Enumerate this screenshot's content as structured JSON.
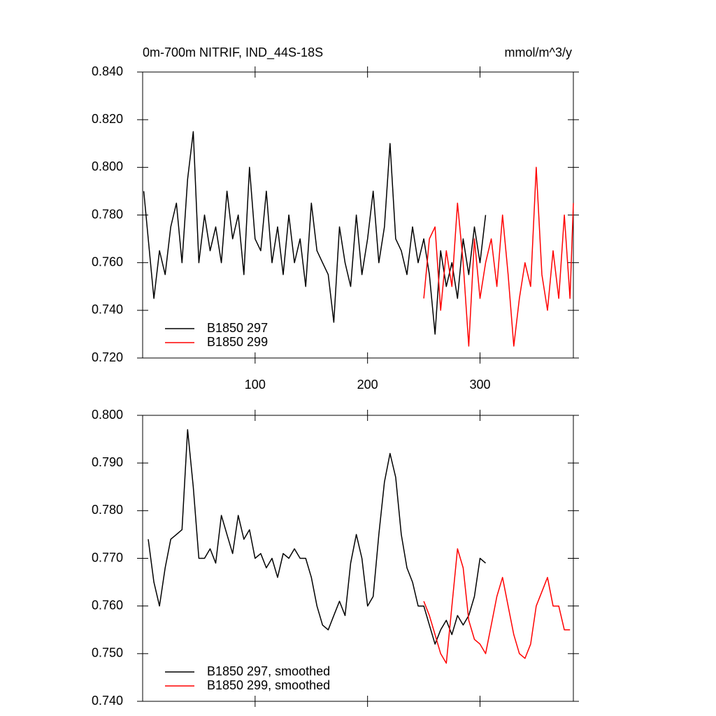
{
  "chart_data": [
    {
      "type": "line",
      "title": "0m-700m NITRIF, IND_44S-18S",
      "units": "mmol/m^3/y",
      "xlim": [
        0,
        383
      ],
      "xticks": [
        100,
        200,
        300
      ],
      "ylim": [
        0.72,
        0.84
      ],
      "yticks": [
        {
          "value": 0.72,
          "label": "0.720"
        },
        {
          "value": 0.74,
          "label": "0.740"
        },
        {
          "value": 0.76,
          "label": "0.760"
        },
        {
          "value": 0.78,
          "label": "0.780"
        },
        {
          "value": 0.8,
          "label": "0.800"
        },
        {
          "value": 0.82,
          "label": "0.820"
        },
        {
          "value": 0.84,
          "label": "0.840"
        }
      ],
      "show_xtick_labels": true,
      "series": [
        {
          "name": "B1850 297",
          "color": "#000000",
          "x": [
            1,
            5,
            10,
            15,
            20,
            25,
            30,
            35,
            40,
            45,
            50,
            55,
            60,
            65,
            70,
            75,
            80,
            85,
            90,
            95,
            100,
            105,
            110,
            115,
            120,
            125,
            130,
            135,
            140,
            145,
            150,
            155,
            160,
            165,
            170,
            175,
            180,
            185,
            190,
            195,
            200,
            205,
            210,
            215,
            220,
            225,
            230,
            235,
            240,
            245,
            250,
            255,
            260,
            265,
            270,
            275,
            280,
            285,
            290,
            295,
            300,
            305
          ],
          "values": [
            0.79,
            0.77,
            0.745,
            0.765,
            0.755,
            0.775,
            0.785,
            0.76,
            0.795,
            0.815,
            0.76,
            0.78,
            0.765,
            0.775,
            0.76,
            0.79,
            0.77,
            0.78,
            0.755,
            0.8,
            0.77,
            0.765,
            0.79,
            0.76,
            0.775,
            0.755,
            0.78,
            0.76,
            0.77,
            0.75,
            0.785,
            0.765,
            0.76,
            0.755,
            0.735,
            0.775,
            0.76,
            0.75,
            0.78,
            0.755,
            0.77,
            0.79,
            0.76,
            0.775,
            0.81,
            0.77,
            0.765,
            0.755,
            0.775,
            0.76,
            0.77,
            0.755,
            0.73,
            0.765,
            0.75,
            0.76,
            0.745,
            0.77,
            0.755,
            0.775,
            0.76,
            0.78
          ]
        },
        {
          "name": "B1850 299",
          "color": "#ff0000",
          "x": [
            250,
            255,
            260,
            265,
            270,
            275,
            280,
            285,
            290,
            295,
            300,
            305,
            310,
            315,
            320,
            325,
            330,
            335,
            340,
            345,
            350,
            355,
            360,
            365,
            370,
            375,
            380,
            383
          ],
          "values": [
            0.745,
            0.77,
            0.775,
            0.74,
            0.765,
            0.75,
            0.785,
            0.76,
            0.725,
            0.77,
            0.745,
            0.76,
            0.77,
            0.75,
            0.78,
            0.755,
            0.725,
            0.745,
            0.76,
            0.75,
            0.8,
            0.755,
            0.74,
            0.765,
            0.745,
            0.78,
            0.745,
            0.785
          ]
        }
      ]
    },
    {
      "type": "line",
      "xlim": [
        0,
        383
      ],
      "xticks": [
        100,
        200,
        300
      ],
      "ylim": [
        0.74,
        0.8
      ],
      "yticks": [
        {
          "value": 0.74,
          "label": "0.740"
        },
        {
          "value": 0.75,
          "label": "0.750"
        },
        {
          "value": 0.76,
          "label": "0.760"
        },
        {
          "value": 0.77,
          "label": "0.770"
        },
        {
          "value": 0.78,
          "label": "0.780"
        },
        {
          "value": 0.79,
          "label": "0.790"
        },
        {
          "value": 0.8,
          "label": "0.800"
        }
      ],
      "show_xtick_labels": false,
      "series": [
        {
          "name": "B1850 297, smoothed",
          "color": "#000000",
          "x": [
            5,
            10,
            15,
            20,
            25,
            30,
            35,
            40,
            45,
            50,
            55,
            60,
            65,
            70,
            75,
            80,
            85,
            90,
            95,
            100,
            105,
            110,
            115,
            120,
            125,
            130,
            135,
            140,
            145,
            150,
            155,
            160,
            165,
            170,
            175,
            180,
            185,
            190,
            195,
            200,
            205,
            210,
            215,
            220,
            225,
            230,
            235,
            240,
            245,
            250,
            255,
            260,
            265,
            270,
            275,
            280,
            285,
            290,
            295,
            300,
            305
          ],
          "values": [
            0.774,
            0.765,
            0.76,
            0.768,
            0.774,
            0.775,
            0.776,
            0.797,
            0.785,
            0.77,
            0.77,
            0.772,
            0.769,
            0.779,
            0.775,
            0.771,
            0.779,
            0.774,
            0.776,
            0.77,
            0.771,
            0.768,
            0.77,
            0.766,
            0.771,
            0.77,
            0.772,
            0.77,
            0.77,
            0.766,
            0.76,
            0.756,
            0.755,
            0.758,
            0.761,
            0.758,
            0.769,
            0.775,
            0.77,
            0.76,
            0.762,
            0.775,
            0.786,
            0.792,
            0.787,
            0.775,
            0.768,
            0.765,
            0.76,
            0.76,
            0.756,
            0.752,
            0.755,
            0.757,
            0.754,
            0.758,
            0.756,
            0.758,
            0.762,
            0.77,
            0.769
          ]
        },
        {
          "name": "B1850 299, smoothed",
          "color": "#ff0000",
          "x": [
            250,
            255,
            260,
            265,
            270,
            275,
            280,
            285,
            290,
            295,
            300,
            305,
            310,
            315,
            320,
            325,
            330,
            335,
            340,
            345,
            350,
            355,
            360,
            365,
            370,
            375,
            380
          ],
          "values": [
            0.761,
            0.758,
            0.754,
            0.75,
            0.748,
            0.76,
            0.772,
            0.768,
            0.757,
            0.753,
            0.752,
            0.75,
            0.756,
            0.762,
            0.766,
            0.76,
            0.754,
            0.75,
            0.749,
            0.752,
            0.76,
            0.763,
            0.766,
            0.76,
            0.76,
            0.755,
            0.755
          ]
        }
      ]
    }
  ]
}
